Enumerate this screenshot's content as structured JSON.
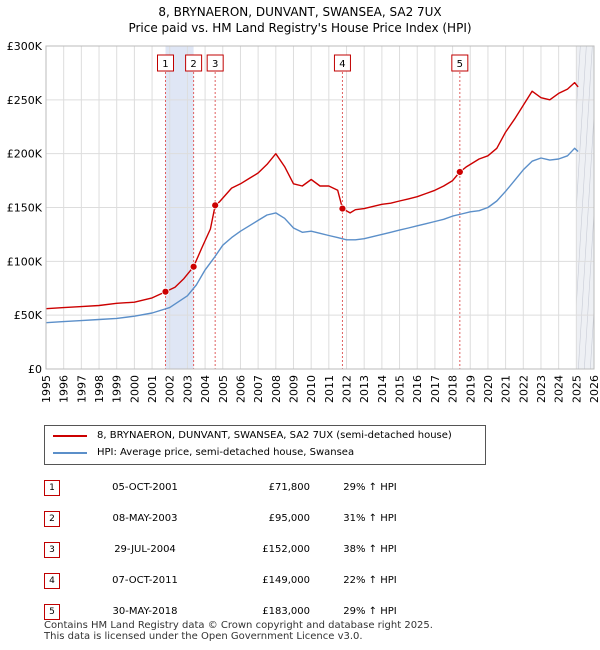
{
  "title": "8, BRYNAERON, DUNVANT, SWANSEA, SA2 7UX",
  "subtitle": "Price paid vs. HM Land Registry's House Price Index (HPI)",
  "colors": {
    "property": "#cc0000",
    "hpi": "#5b8fc9",
    "band": "#dfe6f5",
    "grid": "#dddddd"
  },
  "chart_data": {
    "type": "line",
    "title": "8, BRYNAERON, DUNVANT, SWANSEA, SA2 7UX",
    "subtitle": "Price paid vs. HM Land Registry's House Price Index (HPI)",
    "xlim": [
      1995,
      2026
    ],
    "ylim": [
      0,
      300000
    ],
    "y_ticks": [
      0,
      50000,
      100000,
      150000,
      200000,
      250000,
      300000
    ],
    "y_tick_labels": [
      "£0",
      "£50K",
      "£100K",
      "£150K",
      "£200K",
      "£250K",
      "£300K"
    ],
    "x_ticks": [
      1995,
      1996,
      1997,
      1998,
      1999,
      2000,
      2001,
      2002,
      2003,
      2004,
      2005,
      2006,
      2007,
      2008,
      2009,
      2010,
      2011,
      2012,
      2013,
      2014,
      2015,
      2016,
      2017,
      2018,
      2019,
      2020,
      2021,
      2022,
      2023,
      2024,
      2025,
      2026
    ],
    "grid": true,
    "projection_start": 2025.0,
    "series": [
      {
        "name": "8, BRYNAERON, DUNVANT, SWANSEA, SA2 7UX (semi-detached house)",
        "color": "#cc0000",
        "x": [
          1995,
          1996,
          1997,
          1998,
          1999,
          2000,
          2001,
          2001.76,
          2002.3,
          2002.8,
          2003.35,
          2003.8,
          2004.3,
          2004.57,
          2004.8,
          2005.5,
          2006,
          2006.5,
          2007,
          2007.5,
          2008,
          2008.5,
          2009,
          2009.5,
          2010,
          2010.5,
          2011,
          2011.5,
          2011.77,
          2012.2,
          2012.5,
          2013,
          2013.5,
          2014,
          2014.5,
          2015,
          2015.5,
          2016,
          2016.5,
          2017,
          2017.5,
          2018,
          2018.41,
          2018.8,
          2019.5,
          2020,
          2020.5,
          2021,
          2021.5,
          2022,
          2022.5,
          2023,
          2023.5,
          2024,
          2024.5,
          2024.9,
          2025.1
        ],
        "values": [
          56000,
          57000,
          58000,
          59000,
          61000,
          62000,
          66000,
          71800,
          76000,
          84000,
          95000,
          112000,
          130000,
          152000,
          155000,
          168000,
          172000,
          177000,
          182000,
          190000,
          200000,
          188000,
          172000,
          170000,
          176000,
          170000,
          170000,
          166000,
          149000,
          145000,
          148000,
          149000,
          151000,
          153000,
          154000,
          156000,
          158000,
          160000,
          163000,
          166000,
          170000,
          175000,
          183000,
          188000,
          195000,
          198000,
          205000,
          220000,
          232000,
          245000,
          258000,
          252000,
          250000,
          256000,
          260000,
          266000,
          262000
        ]
      },
      {
        "name": "HPI: Average price, semi-detached house, Swansea",
        "color": "#5b8fc9",
        "x": [
          1995,
          1996,
          1997,
          1998,
          1999,
          2000,
          2001,
          2002,
          2003,
          2003.5,
          2004,
          2004.5,
          2005,
          2005.5,
          2006,
          2006.5,
          2007,
          2007.5,
          2008,
          2008.5,
          2009,
          2009.5,
          2010,
          2010.5,
          2011,
          2011.5,
          2012,
          2012.5,
          2013,
          2013.5,
          2014,
          2014.5,
          2015,
          2015.5,
          2016,
          2016.5,
          2017,
          2017.5,
          2018,
          2018.5,
          2019,
          2019.5,
          2020,
          2020.5,
          2021,
          2021.5,
          2022,
          2022.5,
          2023,
          2023.5,
          2024,
          2024.5,
          2024.9,
          2025.1
        ],
        "values": [
          43000,
          44000,
          45000,
          46000,
          47000,
          49000,
          52000,
          57000,
          68000,
          78000,
          92000,
          103000,
          115000,
          122000,
          128000,
          133000,
          138000,
          143000,
          145000,
          140000,
          131000,
          127000,
          128000,
          126000,
          124000,
          122000,
          120000,
          120000,
          121000,
          123000,
          125000,
          127000,
          129000,
          131000,
          133000,
          135000,
          137000,
          139000,
          142000,
          144000,
          146000,
          147000,
          150000,
          156000,
          165000,
          175000,
          185000,
          193000,
          196000,
          194000,
          195000,
          198000,
          205000,
          202000
        ]
      }
    ],
    "sale_points": [
      {
        "label": "1",
        "x": 2001.76,
        "value": 71800
      },
      {
        "label": "2",
        "x": 2003.35,
        "value": 95000
      },
      {
        "label": "3",
        "x": 2004.57,
        "value": 152000
      },
      {
        "label": "4",
        "x": 2011.77,
        "value": 149000
      },
      {
        "label": "5",
        "x": 2018.41,
        "value": 183000
      }
    ],
    "shaded_bands": [
      [
        2001.76,
        2003.35
      ],
      [
        2004.57,
        2004.57
      ]
    ]
  },
  "legend": {
    "property_label": "8, BRYNAERON, DUNVANT, SWANSEA, SA2 7UX (semi-detached house)",
    "hpi_label": "HPI: Average price, semi-detached house, Swansea"
  },
  "sales": [
    {
      "num": "1",
      "date": "05-OCT-2001",
      "price": "£71,800",
      "hpi": "29% ↑ HPI"
    },
    {
      "num": "2",
      "date": "08-MAY-2003",
      "price": "£95,000",
      "hpi": "31% ↑ HPI"
    },
    {
      "num": "3",
      "date": "29-JUL-2004",
      "price": "£152,000",
      "hpi": "38% ↑ HPI"
    },
    {
      "num": "4",
      "date": "07-OCT-2011",
      "price": "£149,000",
      "hpi": "22% ↑ HPI"
    },
    {
      "num": "5",
      "date": "30-MAY-2018",
      "price": "£183,000",
      "hpi": "29% ↑ HPI"
    }
  ],
  "footer": {
    "line1": "Contains HM Land Registry data © Crown copyright and database right 2025.",
    "line2": "This data is licensed under the Open Government Licence v3.0."
  }
}
